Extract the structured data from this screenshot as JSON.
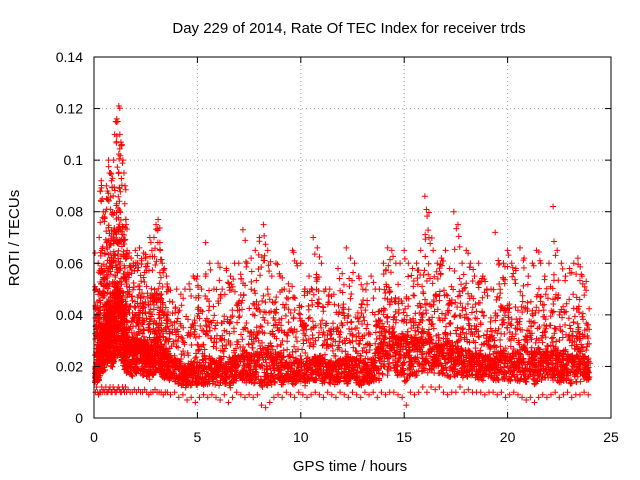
{
  "chart_data": {
    "type": "scatter",
    "title": "Day 229 of 2014, Rate Of TEC Index for receiver trds",
    "xlabel": "GPS time / hours",
    "ylabel": "ROTI / TECUs",
    "xlim": [
      0,
      25
    ],
    "ylim": [
      0,
      0.14
    ],
    "x_ticks": [
      0,
      5,
      10,
      15,
      20,
      25
    ],
    "x_tick_labels": [
      "0",
      "5",
      "10",
      "15",
      "20",
      "25"
    ],
    "y_ticks": [
      0,
      0.02,
      0.04,
      0.06,
      0.08,
      0.1,
      0.12,
      0.14
    ],
    "y_tick_labels": [
      "0",
      "0.02",
      "0.04",
      "0.06",
      "0.08",
      "0.1",
      "0.12",
      "0.14"
    ],
    "grid": true,
    "marker": "+",
    "color": "#ff0000",
    "series": [
      {
        "name": "ROTI",
        "x": [
          0.05,
          0.1,
          0.15,
          0.2,
          0.25,
          0.3,
          0.35,
          0.4,
          0.45,
          0.5,
          0.55,
          0.6,
          0.65,
          0.7,
          0.75,
          0.8,
          0.85,
          0.9,
          0.95,
          1.0,
          1.05,
          1.1,
          1.15,
          1.2,
          1.25,
          1.3,
          1.35,
          1.4,
          1.45,
          1.5,
          1.55,
          1.6,
          1.7,
          1.8,
          1.9,
          2.0,
          2.1,
          2.2,
          2.3,
          2.4,
          2.5,
          2.6,
          2.7,
          2.8,
          2.9,
          3.0,
          3.1,
          3.2,
          3.3,
          3.4,
          3.5,
          3.6,
          3.8,
          4.0,
          4.2,
          4.4,
          4.6,
          4.8,
          5.0,
          5.2,
          5.4,
          5.6,
          5.8,
          6.0,
          6.2,
          6.4,
          6.6,
          6.8,
          7.0,
          7.2,
          7.4,
          7.6,
          7.8,
          8.0,
          8.2,
          8.4,
          8.6,
          8.8,
          9.0,
          9.2,
          9.4,
          9.6,
          9.8,
          10.0,
          10.2,
          10.4,
          10.6,
          10.8,
          11.0,
          11.2,
          11.4,
          11.6,
          11.8,
          12.0,
          12.2,
          12.4,
          12.6,
          12.8,
          13.0,
          13.2,
          13.4,
          13.6,
          13.8,
          14.0,
          14.2,
          14.4,
          14.6,
          14.8,
          15.0,
          15.2,
          15.4,
          15.6,
          15.8,
          16.0,
          16.2,
          16.4,
          16.6,
          16.8,
          17.0,
          17.2,
          17.4,
          17.6,
          17.8,
          18.0,
          18.2,
          18.4,
          18.6,
          18.8,
          19.0,
          19.2,
          19.4,
          19.6,
          19.8,
          20.0,
          20.2,
          20.4,
          20.6,
          20.8,
          21.0,
          21.2,
          21.4,
          21.6,
          21.8,
          22.0,
          22.2,
          22.4,
          22.6,
          22.8,
          23.0,
          23.2,
          23.4,
          23.6,
          23.8
        ],
        "y_upper": [
          0.064,
          0.05,
          0.045,
          0.06,
          0.07,
          0.088,
          0.092,
          0.085,
          0.08,
          0.078,
          0.08,
          0.09,
          0.088,
          0.1,
          0.095,
          0.095,
          0.092,
          0.093,
          0.1,
          0.11,
          0.115,
          0.116,
          0.115,
          0.121,
          0.11,
          0.107,
          0.106,
          0.1,
          0.095,
          0.09,
          0.075,
          0.065,
          0.064,
          0.062,
          0.06,
          0.065,
          0.063,
          0.066,
          0.061,
          0.064,
          0.062,
          0.06,
          0.07,
          0.065,
          0.07,
          0.075,
          0.077,
          0.065,
          0.06,
          0.058,
          0.055,
          0.05,
          0.045,
          0.05,
          0.048,
          0.05,
          0.052,
          0.055,
          0.055,
          0.05,
          0.068,
          0.06,
          0.05,
          0.06,
          0.05,
          0.058,
          0.055,
          0.06,
          0.06,
          0.073,
          0.06,
          0.062,
          0.065,
          0.07,
          0.075,
          0.065,
          0.055,
          0.06,
          0.055,
          0.05,
          0.052,
          0.065,
          0.06,
          0.06,
          0.05,
          0.055,
          0.07,
          0.066,
          0.06,
          0.05,
          0.05,
          0.048,
          0.058,
          0.056,
          0.066,
          0.062,
          0.06,
          0.055,
          0.05,
          0.052,
          0.055,
          0.05,
          0.05,
          0.06,
          0.066,
          0.065,
          0.06,
          0.06,
          0.065,
          0.06,
          0.058,
          0.06,
          0.065,
          0.086,
          0.07,
          0.065,
          0.06,
          0.062,
          0.065,
          0.058,
          0.08,
          0.075,
          0.06,
          0.065,
          0.06,
          0.055,
          0.06,
          0.055,
          0.05,
          0.05,
          0.072,
          0.06,
          0.06,
          0.065,
          0.06,
          0.058,
          0.066,
          0.062,
          0.055,
          0.06,
          0.065,
          0.06,
          0.055,
          0.06,
          0.082,
          0.065,
          0.06,
          0.055,
          0.058,
          0.06,
          0.062,
          0.055,
          0.053
        ],
        "y_lower": [
          0.01,
          0.012,
          0.01,
          0.009,
          0.01,
          0.01,
          0.012,
          0.01,
          0.011,
          0.01,
          0.012,
          0.01,
          0.01,
          0.011,
          0.012,
          0.01,
          0.01,
          0.012,
          0.011,
          0.01,
          0.01,
          0.011,
          0.012,
          0.011,
          0.01,
          0.01,
          0.012,
          0.011,
          0.01,
          0.012,
          0.01,
          0.011,
          0.01,
          0.01,
          0.011,
          0.01,
          0.011,
          0.01,
          0.01,
          0.011,
          0.01,
          0.009,
          0.01,
          0.01,
          0.011,
          0.01,
          0.01,
          0.01,
          0.009,
          0.01,
          0.01,
          0.009,
          0.01,
          0.008,
          0.009,
          0.007,
          0.008,
          0.006,
          0.008,
          0.009,
          0.008,
          0.009,
          0.008,
          0.007,
          0.009,
          0.006,
          0.008,
          0.01,
          0.009,
          0.008,
          0.009,
          0.008,
          0.009,
          0.005,
          0.004,
          0.006,
          0.008,
          0.009,
          0.008,
          0.01,
          0.009,
          0.008,
          0.01,
          0.009,
          0.008,
          0.009,
          0.01,
          0.009,
          0.008,
          0.01,
          0.009,
          0.008,
          0.01,
          0.009,
          0.008,
          0.01,
          0.009,
          0.008,
          0.01,
          0.009,
          0.01,
          0.008,
          0.01,
          0.009,
          0.01,
          0.01,
          0.009,
          0.008,
          0.005,
          0.01,
          0.009,
          0.01,
          0.012,
          0.01,
          0.012,
          0.011,
          0.012,
          0.01,
          0.009,
          0.01,
          0.01,
          0.012,
          0.01,
          0.011,
          0.01,
          0.01,
          0.01,
          0.009,
          0.01,
          0.01,
          0.009,
          0.01,
          0.008,
          0.009,
          0.01,
          0.009,
          0.008,
          0.007,
          0.008,
          0.006,
          0.008,
          0.009,
          0.008,
          0.009,
          0.01,
          0.008,
          0.009,
          0.01,
          0.008,
          0.009,
          0.009,
          0.01,
          0.009
        ],
        "y_typical": [
          0.018,
          0.019,
          0.02,
          0.022,
          0.025,
          0.03,
          0.032,
          0.03,
          0.028,
          0.03,
          0.032,
          0.035,
          0.035,
          0.038,
          0.036,
          0.035,
          0.033,
          0.034,
          0.037,
          0.04,
          0.042,
          0.043,
          0.042,
          0.044,
          0.04,
          0.038,
          0.036,
          0.034,
          0.032,
          0.03,
          0.028,
          0.026,
          0.026,
          0.025,
          0.026,
          0.027,
          0.026,
          0.027,
          0.025,
          0.026,
          0.025,
          0.024,
          0.026,
          0.025,
          0.026,
          0.027,
          0.027,
          0.025,
          0.024,
          0.023,
          0.022,
          0.021,
          0.02,
          0.019,
          0.018,
          0.018,
          0.018,
          0.019,
          0.019,
          0.018,
          0.02,
          0.02,
          0.019,
          0.02,
          0.019,
          0.02,
          0.02,
          0.021,
          0.021,
          0.022,
          0.021,
          0.021,
          0.022,
          0.022,
          0.022,
          0.021,
          0.02,
          0.021,
          0.02,
          0.019,
          0.019,
          0.02,
          0.02,
          0.02,
          0.019,
          0.02,
          0.021,
          0.021,
          0.02,
          0.019,
          0.019,
          0.019,
          0.02,
          0.02,
          0.021,
          0.02,
          0.02,
          0.019,
          0.019,
          0.019,
          0.02,
          0.023,
          0.025,
          0.027,
          0.028,
          0.028,
          0.027,
          0.027,
          0.027,
          0.026,
          0.026,
          0.026,
          0.027,
          0.028,
          0.027,
          0.026,
          0.025,
          0.025,
          0.026,
          0.025,
          0.025,
          0.024,
          0.023,
          0.023,
          0.022,
          0.022,
          0.022,
          0.021,
          0.021,
          0.021,
          0.022,
          0.022,
          0.022,
          0.022,
          0.022,
          0.022,
          0.023,
          0.023,
          0.022,
          0.022,
          0.023,
          0.022,
          0.022,
          0.022,
          0.023,
          0.022,
          0.022,
          0.021,
          0.021,
          0.021,
          0.021,
          0.021,
          0.02
        ]
      }
    ]
  }
}
